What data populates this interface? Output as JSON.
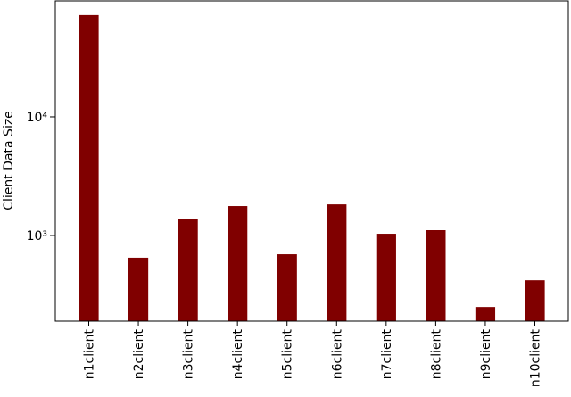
{
  "chart_data": {
    "type": "bar",
    "ylabel": "Client Data Size",
    "categories": [
      "n1client",
      "n2client",
      "n3client",
      "n4client",
      "n5client",
      "n6client",
      "n7client",
      "n8client",
      "n9client",
      "n10client"
    ],
    "values": [
      72000,
      650,
      1390,
      1770,
      695,
      1830,
      1035,
      1110,
      250,
      420
    ],
    "color": "#800000",
    "log_scale": true,
    "ylim": [
      190,
      94800
    ],
    "yticks": [
      {
        "value": 1000,
        "label": "10³"
      },
      {
        "value": 10000,
        "label": "10⁴"
      }
    ],
    "grid": false
  }
}
